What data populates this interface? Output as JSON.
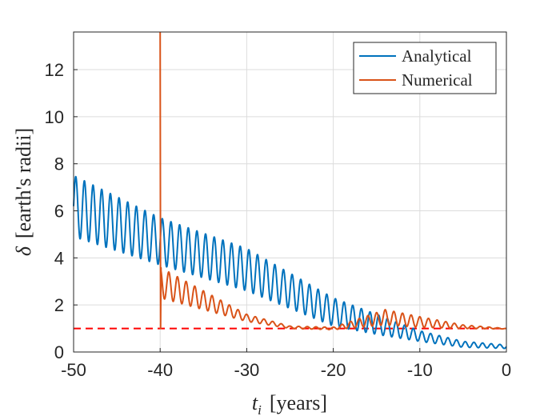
{
  "chart_data": {
    "type": "line",
    "title": "",
    "xlabel_var": "t",
    "xlabel_sub": "i",
    "xlabel_unit": "[years]",
    "ylabel_var": "δ",
    "ylabel_unit": "[earth's radii]",
    "xlim": [
      -50,
      0
    ],
    "ylim": [
      0,
      13.6
    ],
    "xticks": [
      -50,
      -40,
      -30,
      -20,
      -10,
      0
    ],
    "xtick_labels": [
      "-50",
      "-40",
      "-30",
      "-20",
      "-10",
      "0"
    ],
    "yticks": [
      0,
      2,
      4,
      6,
      8,
      10,
      12
    ],
    "ytick_labels": [
      "0",
      "2",
      "4",
      "6",
      "8",
      "10",
      "12"
    ],
    "grid": true,
    "legend_position": "top-right",
    "reference_line": {
      "y": 1.0,
      "style": "dashed",
      "color": "#ff0000"
    },
    "series": [
      {
        "name": "Analytical",
        "color": "#0072bd",
        "oscillation_period_years": 1.0,
        "description_values": {
          "x": [
            -50,
            -40,
            -30,
            -20,
            -15,
            -10,
            -5,
            0
          ],
          "y_upper": [
            7.5,
            5.7,
            4.4,
            2.3,
            1.6,
            0.9,
            0.45,
            0.3
          ],
          "y_lower": [
            4.9,
            3.7,
            2.6,
            1.1,
            0.75,
            0.45,
            0.2,
            0.15
          ]
        }
      },
      {
        "name": "Numerical",
        "color": "#d95319",
        "spike": {
          "x": -40,
          "y_max": 13.6,
          "y_min": 1.0
        },
        "oscillation_period_years": 1.0,
        "description_values": {
          "x": [
            -40,
            -35,
            -30,
            -25,
            -20,
            -14,
            -10,
            -5,
            0
          ],
          "y_upper": [
            3.6,
            2.6,
            1.6,
            1.1,
            1.05,
            1.8,
            1.5,
            1.15,
            1.0
          ],
          "y_lower": [
            2.3,
            1.8,
            1.3,
            1.0,
            0.95,
            1.15,
            1.05,
            1.0,
            0.98
          ]
        }
      }
    ]
  }
}
